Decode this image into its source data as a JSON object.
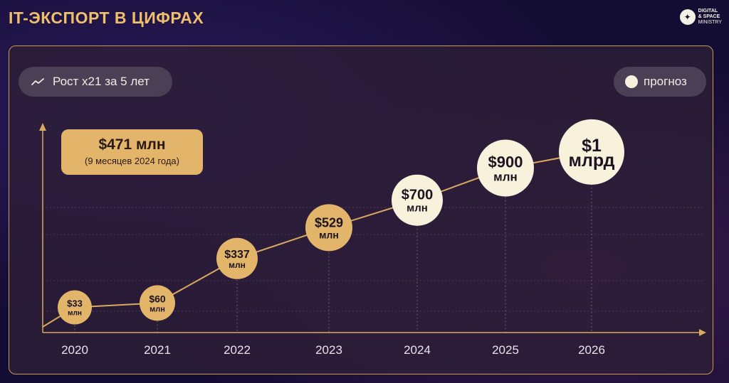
{
  "header": {
    "title": "IT-экспорт в цифрах"
  },
  "logo": {
    "line1": "DIGITAL",
    "line2": "& SPACE",
    "line3": "MINISTRY"
  },
  "growth_badge": {
    "label": "Рост x21 за 5 лет",
    "icon": "trend-up-icon"
  },
  "legend": {
    "label": "прогноз"
  },
  "callout": {
    "value": "$471 млн",
    "note": "(9 месяцев 2024 года)"
  },
  "colors": {
    "actual": "#e3b56a",
    "forecast": "#f8f1dc",
    "line": "#d9a95e",
    "accent": "#f0bf6a"
  },
  "chart_data": {
    "type": "line",
    "x": [
      "2020",
      "2021",
      "2022",
      "2023",
      "2024",
      "2025",
      "2026"
    ],
    "values": [
      33,
      60,
      337,
      529,
      700,
      900,
      1000
    ],
    "labels": [
      [
        "$33",
        "млн"
      ],
      [
        "$60",
        "млн"
      ],
      [
        "$337",
        "млн"
      ],
      [
        "$529",
        "млн"
      ],
      [
        "$700",
        "млн"
      ],
      [
        "$900",
        "млн"
      ],
      [
        "$1",
        "млрд"
      ]
    ],
    "forecast": [
      false,
      false,
      false,
      false,
      true,
      true,
      true
    ],
    "ylim": [
      0,
      1150
    ],
    "grid": true,
    "legend_position": "top-right"
  }
}
